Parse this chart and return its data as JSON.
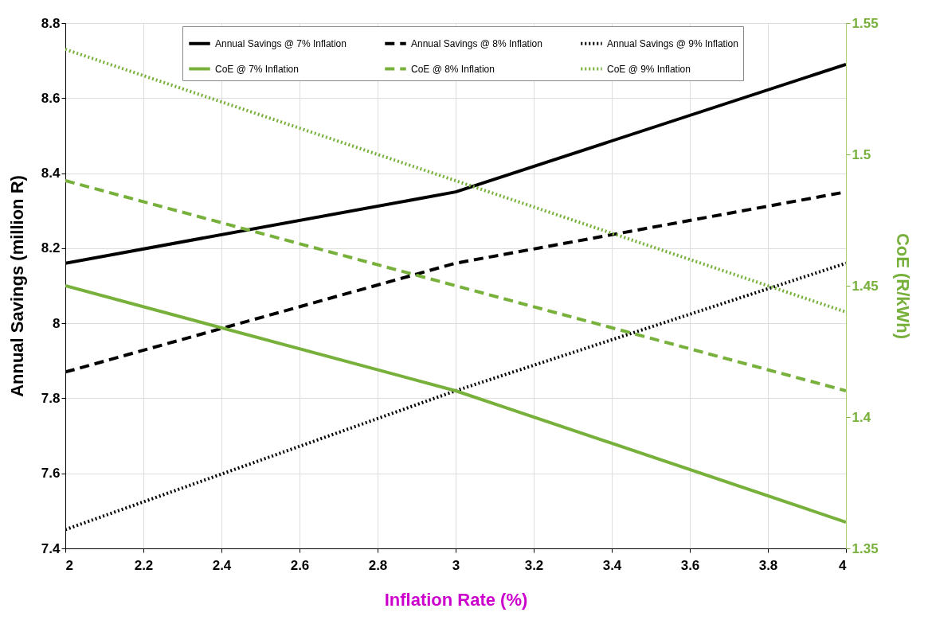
{
  "chart_data": {
    "type": "line",
    "xlabel": "Inflation Rate (%)",
    "ylabel": "Annual Savings (million R)",
    "y2label": "CoE (R/kWh)",
    "x": [
      2,
      3,
      4
    ],
    "xlim": [
      2,
      4
    ],
    "xticks": [
      2,
      2.2,
      2.4,
      2.6,
      2.8,
      3,
      3.2,
      3.4,
      3.6,
      3.8,
      4
    ],
    "ylim": [
      7.4,
      8.8
    ],
    "yticks": [
      7.4,
      7.6,
      7.8,
      8,
      8.2,
      8.4,
      8.6,
      8.8
    ],
    "y2lim": [
      1.35,
      1.55
    ],
    "y2ticks": [
      1.35,
      1.4,
      1.45,
      1.5,
      1.55
    ],
    "grid": true,
    "legend": "top",
    "series": [
      {
        "name": "Annual Savings @ 7% Inflation",
        "color": "#000000",
        "line_style": "solid",
        "values": [
          8.16,
          8.35,
          8.69
        ]
      },
      {
        "name": "Annual Savings @ 8% Inflation",
        "color": "#000000",
        "line_style": "dashed",
        "values": [
          7.87,
          8.16,
          8.35
        ]
      },
      {
        "name": "Annual Savings @ 9% Inflation",
        "color": "#000000",
        "line_style": "dotted",
        "values": [
          7.45,
          7.82,
          8.16
        ]
      },
      {
        "name": "CoE @ 7% Inflation",
        "color": "#77b03a",
        "line_style": "solid",
        "axis": "y2",
        "values": [
          1.45,
          1.41,
          1.36
        ]
      },
      {
        "name": "CoE @ 8% Inflation",
        "color": "#77b03a",
        "line_style": "dashed",
        "axis": "y2",
        "values": [
          1.49,
          1.45,
          1.41
        ]
      },
      {
        "name": "CoE @ 9% Inflation",
        "color": "#77b03a",
        "line_style": "dotted",
        "axis": "y2",
        "values": [
          1.54,
          1.49,
          1.44
        ]
      }
    ]
  }
}
